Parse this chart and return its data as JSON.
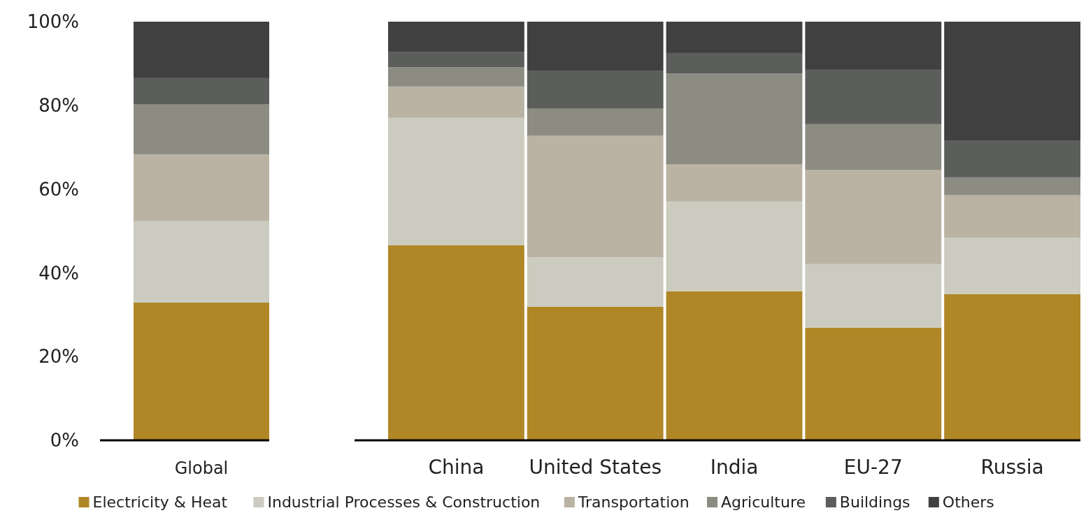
{
  "chart_data": [
    {
      "type": "bar",
      "stacked": true,
      "categories": [
        "Global"
      ],
      "ylim": [
        0,
        100
      ],
      "yticks": [
        {
          "value": 0,
          "label": "0%"
        },
        {
          "value": 20,
          "label": "20%"
        },
        {
          "value": 40,
          "label": "40%"
        },
        {
          "value": 60,
          "label": "60%"
        },
        {
          "value": 80,
          "label": "80%"
        },
        {
          "value": 100,
          "label": "100%"
        }
      ],
      "grid": false,
      "legend": false,
      "series": [
        {
          "color": "#b08727",
          "values": [
            32.9
          ]
        },
        {
          "color": "#cccbbf",
          "values": [
            19.5
          ]
        },
        {
          "color": "#bab3a4",
          "values": [
            15.9
          ]
        },
        {
          "color": "#8c8c82",
          "values": [
            12
          ]
        },
        {
          "color": "#5c5e5b",
          "values": [
            6.2
          ]
        },
        {
          "color": "#404040",
          "values": [
            13.5
          ]
        }
      ]
    },
    {
      "type": "bar",
      "stacked": true,
      "categories": [
        "China",
        "United States",
        "India",
        "EU-27",
        "Russia"
      ],
      "ylim": [
        0,
        100
      ],
      "tick_labels": "x",
      "grid": false,
      "legend": "bottom",
      "series": [
        {
          "name": "Electricity & Heat",
          "color": "#b08727",
          "values": [
            46.6,
            31.9,
            35.6,
            26.9,
            34.9
          ]
        },
        {
          "name": "Industrial Processes & Construction",
          "color": "#cccbbf",
          "values": [
            30.4,
            11.8,
            21.5,
            15.2,
            13.5
          ]
        },
        {
          "name": "Transportation",
          "color": "#bab3a4",
          "values": [
            7.5,
            29.1,
            8.8,
            22.5,
            10.2
          ]
        },
        {
          "name": "Agriculture",
          "color": "#8c8c82",
          "values": [
            4.6,
            6.5,
            21.7,
            10.9,
            4.2
          ]
        },
        {
          "name": "Buildings",
          "color": "#5c5e5b",
          "values": [
            3.6,
            9.0,
            4.9,
            13.0,
            8.7
          ]
        },
        {
          "name": "Others",
          "color": "#404040",
          "values": [
            7.3,
            11.7,
            7.5,
            11.5,
            28.5
          ]
        }
      ]
    }
  ]
}
